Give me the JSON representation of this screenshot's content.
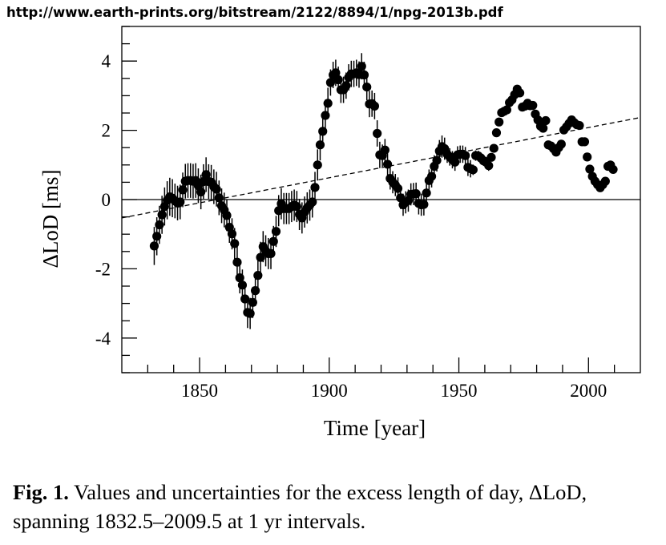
{
  "header": {
    "url_text": "http://www.earth-prints.org/bitstream/2122/8894/1/npg-2013b.pdf"
  },
  "caption": {
    "lead": "Fig. 1.",
    "line1": " Values and uncertainties for the excess length of day, ΔLoD,",
    "line2": "spanning 1832.5–2009.5 at 1 yr intervals."
  },
  "chart_data": {
    "type": "scatter",
    "title": "",
    "xlabel": "Time [year]",
    "ylabel": "ΔLoD [ms]",
    "xlim": [
      1820,
      2020
    ],
    "ylim": [
      -5,
      5
    ],
    "x_major_ticks": [
      1850,
      1900,
      1950,
      2000
    ],
    "x_minor_step": 10,
    "y_major_ticks": [
      -4,
      -2,
      0,
      2,
      4
    ],
    "y_minor_step": 0.5,
    "grid": false,
    "legend": "none",
    "reference_line": {
      "y": 0,
      "style": "solid"
    },
    "trend_line": {
      "style": "dashed",
      "x": [
        1820,
        2020
      ],
      "y": [
        -0.53,
        2.37
      ]
    },
    "series": [
      {
        "name": "ΔLoD",
        "marker": "filled-circle",
        "x_start": 1832.5,
        "x_step": 1,
        "values": [
          -1.34,
          -1.06,
          -0.73,
          -0.44,
          -0.2,
          -0.02,
          0.08,
          0.04,
          -0.04,
          -0.1,
          -0.07,
          0.28,
          0.53,
          0.55,
          0.55,
          0.53,
          0.55,
          0.4,
          0.22,
          0.52,
          0.72,
          0.52,
          0.5,
          0.37,
          0.3,
          0.05,
          -0.18,
          -0.3,
          -0.46,
          -0.8,
          -0.99,
          -1.27,
          -1.81,
          -2.26,
          -2.47,
          -2.87,
          -3.26,
          -3.29,
          -2.97,
          -2.63,
          -2.19,
          -1.67,
          -1.36,
          -1.48,
          -1.56,
          -1.56,
          -1.21,
          -0.92,
          -0.32,
          -0.12,
          -0.26,
          -0.26,
          -0.26,
          -0.2,
          -0.16,
          -0.2,
          -0.43,
          -0.53,
          -0.36,
          -0.24,
          -0.16,
          -0.07,
          0.35,
          1.0,
          1.58,
          1.97,
          2.43,
          2.78,
          3.38,
          3.6,
          3.66,
          3.46,
          3.17,
          3.17,
          3.29,
          3.53,
          3.63,
          3.63,
          3.66,
          3.61,
          3.85,
          3.6,
          3.25,
          2.76,
          2.77,
          2.7,
          1.91,
          1.29,
          1.27,
          1.43,
          1.02,
          0.61,
          0.5,
          0.42,
          0.32,
          0.05,
          -0.15,
          -0.08,
          -0.03,
          0.15,
          0.16,
          0.17,
          -0.11,
          -0.15,
          -0.14,
          0.19,
          0.55,
          0.67,
          0.96,
          1.13,
          1.4,
          1.53,
          1.47,
          1.31,
          1.23,
          1.15,
          1.08,
          1.29,
          1.31,
          1.31,
          1.27,
          0.93,
          0.89,
          0.86,
          1.27,
          1.26,
          1.2,
          1.12,
          1.08,
          0.98,
          1.22,
          1.48,
          1.93,
          2.24,
          2.51,
          2.55,
          2.59,
          2.8,
          2.88,
          3.03,
          3.19,
          3.08,
          2.67,
          2.7,
          2.78,
          2.71,
          2.72,
          2.47,
          2.3,
          2.12,
          2.06,
          2.28,
          1.58,
          1.55,
          1.47,
          1.37,
          1.5,
          1.6,
          2.01,
          2.1,
          2.2,
          2.3,
          2.22,
          2.16,
          2.14,
          1.67,
          1.67,
          1.23,
          0.88,
          0.67,
          0.53,
          0.43,
          0.34,
          0.43,
          0.53,
          0.96,
          1.0,
          0.87
        ],
        "uncertainty_by_period": [
          {
            "from": 1832.5,
            "to": 1839.5,
            "sigma": 0.55
          },
          {
            "from": 1840.5,
            "to": 1859.5,
            "sigma": 0.5
          },
          {
            "from": 1860.5,
            "to": 1899.5,
            "sigma": 0.45
          },
          {
            "from": 1900.5,
            "to": 1919.5,
            "sigma": 0.38
          },
          {
            "from": 1920.5,
            "to": 1944.5,
            "sigma": 0.32
          },
          {
            "from": 1945.5,
            "to": 1954.5,
            "sigma": 0.25
          },
          {
            "from": 1955.5,
            "to": 1961.5,
            "sigma": 0.15
          },
          {
            "from": 1962.5,
            "to": 2009.5,
            "sigma": 0.04
          }
        ]
      }
    ]
  }
}
